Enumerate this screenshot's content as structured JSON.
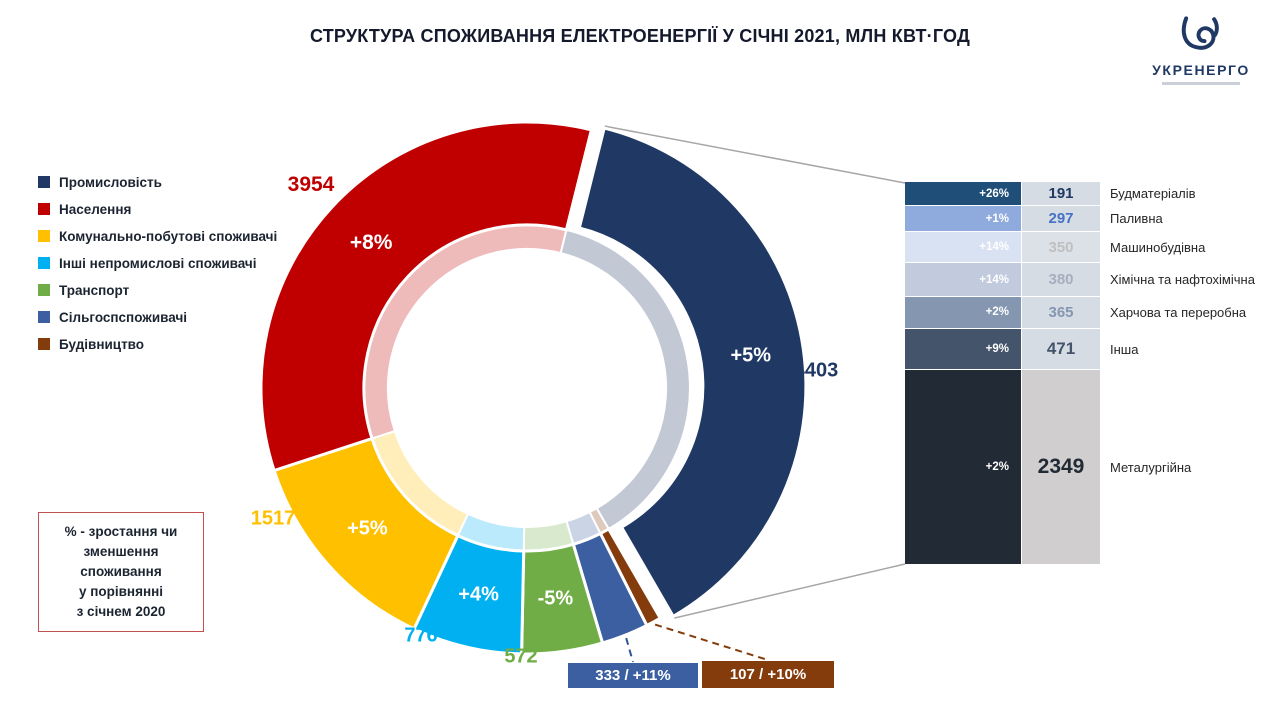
{
  "title": "СТРУКТУРА СПОЖИВАННЯ ЕЛЕКТРОЕНЕРГІЇ У СІЧНІ 2021, МЛН КВТ·ГОД",
  "logo": {
    "name": "УКРЕНЕРГО"
  },
  "note": {
    "lines": [
      "% - зростання чи",
      "зменшення",
      "споживання",
      "у порівнянні",
      "з січнем 2020"
    ]
  },
  "chart_data": {
    "type": "pie",
    "style": "donut",
    "title": "СТРУКТУРА СПОЖИВАННЯ ЕЛЕКТРОЕНЕРГІЇ У СІЧНІ 2021, МЛН КВТ·ГОД",
    "units": "млн кВт·год",
    "legend_position": "left",
    "segments": [
      {
        "label": "Промисловість",
        "value": 4403,
        "change": "+5%",
        "color": "#1F3864"
      },
      {
        "label": "Населення",
        "value": 3954,
        "change": "+8%",
        "color": "#C00000"
      },
      {
        "label": "Комунально-побутові споживачі",
        "value": 1517,
        "change": "+5%",
        "color": "#FFC000"
      },
      {
        "label": "Інші непромислові споживачі",
        "value": 776,
        "change": "+4%",
        "color": "#00B0F0"
      },
      {
        "label": "Транспорт",
        "value": 572,
        "change": "-5%",
        "color": "#70AD47"
      },
      {
        "label": "Сільгоспспоживачі",
        "value": 333,
        "change": "+11%",
        "color": "#3B5FA0"
      },
      {
        "label": "Будівництво",
        "value": 107,
        "change": "+10%",
        "color": "#843C0C"
      }
    ],
    "callouts": [
      {
        "text": "333 / +11%",
        "color": "#3B5FA0",
        "line_color": "#2F5496"
      },
      {
        "text": "107 / +10%",
        "color": "#843C0C",
        "line_color": "#843C0C"
      }
    ],
    "industry_breakdown": {
      "parent_segment": "Промисловість",
      "rows": [
        {
          "label": "Будматеріалів",
          "change": "+26%",
          "value": 191,
          "pct_bg": "#1F4E79",
          "val_bg": "#D6DCE4",
          "val_color": "#1F3864"
        },
        {
          "label": "Паливна",
          "change": "+1%",
          "value": 297,
          "pct_bg": "#8FAADC",
          "val_bg": "#D6DCE4",
          "val_color": "#4472C4"
        },
        {
          "label": "Машинобудівна",
          "change": "+14%",
          "value": 350,
          "pct_bg": "#D9E2F3",
          "val_bg": "#DCE1E8",
          "val_color": "#BFBFBF"
        },
        {
          "label": "Хімічна та нафтохімічна",
          "change": "+14%",
          "value": 380,
          "pct_bg": "#C2CBDD",
          "val_bg": "#D6DCE4",
          "val_color": "#A6AFBF"
        },
        {
          "label": "Харчова та переробна",
          "change": "+2%",
          "value": 365,
          "pct_bg": "#8496B0",
          "val_bg": "#D6DCE4",
          "val_color": "#8496B0"
        },
        {
          "label": "Інша",
          "change": "+9%",
          "value": 471,
          "pct_bg": "#44546A",
          "val_bg": "#D6DCE4",
          "val_color": "#44546A"
        },
        {
          "label": "Металургійна",
          "change": "+2%",
          "value": 2349,
          "pct_bg": "#222A35",
          "val_bg": "#D0CECE",
          "val_color": "#222A35"
        }
      ]
    }
  }
}
